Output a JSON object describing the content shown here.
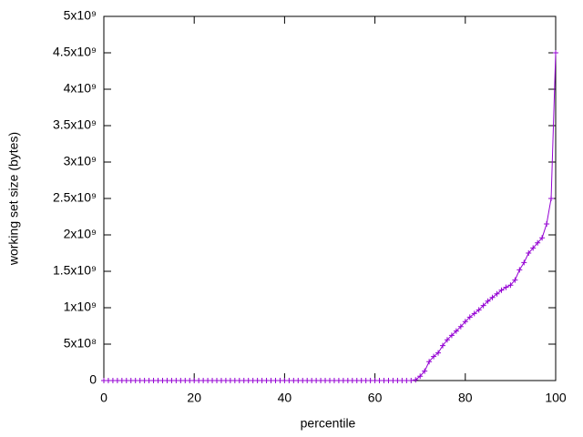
{
  "chart_data": {
    "type": "line",
    "xlabel": "percentile",
    "ylabel": "working set size (bytes)",
    "color": "#9400d3",
    "xlim": [
      0,
      100
    ],
    "xticks": [
      0,
      20,
      40,
      60,
      80,
      100
    ],
    "ylim": [
      0,
      5000000000
    ],
    "yticks": [
      0,
      {
        "value": 500000000,
        "label": "5x10⁸"
      },
      {
        "value": 1000000000,
        "label": "1x10⁹"
      },
      {
        "value": 1500000000,
        "label": "1.5x10⁹"
      },
      {
        "value": 2000000000,
        "label": "2x10⁹"
      },
      {
        "value": 2500000000,
        "label": "2.5x10⁹"
      },
      {
        "value": 3000000000,
        "label": "3x10⁹"
      },
      {
        "value": 3500000000,
        "label": "3.5x10⁹"
      },
      {
        "value": 4000000000,
        "label": "4x10⁹"
      },
      {
        "value": 4500000000,
        "label": "4.5x10⁹"
      },
      {
        "value": 5000000000,
        "label": "5x10⁹"
      }
    ],
    "x": [
      0,
      1,
      2,
      3,
      4,
      5,
      6,
      7,
      8,
      9,
      10,
      11,
      12,
      13,
      14,
      15,
      16,
      17,
      18,
      19,
      20,
      21,
      22,
      23,
      24,
      25,
      26,
      27,
      28,
      29,
      30,
      31,
      32,
      33,
      34,
      35,
      36,
      37,
      38,
      39,
      40,
      41,
      42,
      43,
      44,
      45,
      46,
      47,
      48,
      49,
      50,
      51,
      52,
      53,
      54,
      55,
      56,
      57,
      58,
      59,
      60,
      61,
      62,
      63,
      64,
      65,
      66,
      67,
      68,
      69,
      70,
      71,
      72,
      73,
      74,
      75,
      76,
      77,
      78,
      79,
      80,
      81,
      82,
      83,
      84,
      85,
      86,
      87,
      88,
      89,
      90,
      91,
      92,
      93,
      94,
      95,
      96,
      97,
      98,
      99,
      100
    ],
    "values": [
      0,
      0,
      0,
      0,
      0,
      0,
      0,
      0,
      0,
      0,
      0,
      0,
      0,
      0,
      0,
      0,
      0,
      0,
      0,
      0,
      0,
      0,
      0,
      0,
      0,
      0,
      0,
      0,
      0,
      0,
      0,
      0,
      0,
      0,
      0,
      0,
      0,
      0,
      0,
      0,
      0,
      0,
      0,
      0,
      0,
      0,
      0,
      0,
      0,
      0,
      0,
      0,
      0,
      0,
      0,
      0,
      0,
      0,
      0,
      0,
      0,
      0,
      0,
      0,
      0,
      0,
      0,
      0,
      0,
      10000000,
      60000000,
      130000000,
      260000000,
      330000000,
      380000000,
      480000000,
      560000000,
      620000000,
      680000000,
      740000000,
      810000000,
      870000000,
      920000000,
      970000000,
      1030000000,
      1090000000,
      1140000000,
      1190000000,
      1240000000,
      1280000000,
      1310000000,
      1380000000,
      1520000000,
      1620000000,
      1750000000,
      1820000000,
      1890000000,
      1960000000,
      2150000000,
      2500000000,
      4500000000
    ]
  }
}
